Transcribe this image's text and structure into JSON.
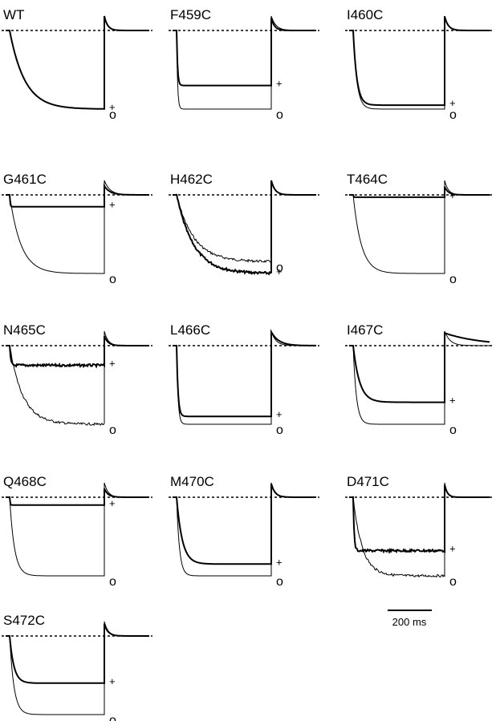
{
  "chart_data": {
    "type": "line",
    "title": "",
    "xlabel": "",
    "ylabel": "",
    "legend": "none; each trace marked at its right end with a symbol",
    "trace_markers": [
      "o",
      "+"
    ],
    "grid": false,
    "reference_line": "dashed zero-current line in every panel",
    "scale_bar": {
      "value": 200,
      "unit": "ms",
      "label": "200 ms"
    },
    "note": "values are current levels relative to the dashed zero line; -1 = deepest steady-state current in the panel; time in ms",
    "panels": [
      {
        "label": "WT",
        "series": [
          {
            "marker": "o",
            "tau_ms": 160,
            "level": -1.0,
            "tail_ms": 35
          },
          {
            "marker": "+",
            "tau_ms": 160,
            "level": -1.0,
            "tail_ms": 35
          }
        ]
      },
      {
        "label": "F459C",
        "series": [
          {
            "marker": "o",
            "tau_ms": 10,
            "level": -1.0,
            "tail_ms": 50
          },
          {
            "marker": "+",
            "tau_ms": 10,
            "level": -0.7,
            "tail_ms": 35
          }
        ]
      },
      {
        "label": "I460C",
        "series": [
          {
            "marker": "o",
            "tau_ms": 40,
            "level": -1.0,
            "tail_ms": 40
          },
          {
            "marker": "+",
            "tau_ms": 40,
            "level": -0.95,
            "tail_ms": 40
          }
        ]
      },
      {
        "label": "G461C",
        "series": [
          {
            "marker": "o",
            "tau_ms": 120,
            "level": -1.0,
            "tail_ms": 60
          },
          {
            "marker": "+",
            "tau_ms": 5,
            "level": -0.15,
            "tail_ms": 60
          }
        ]
      },
      {
        "label": "H462C",
        "series": [
          {
            "marker": "o",
            "tau_ms": 180,
            "level": -0.85,
            "tail_ms": 40
          },
          {
            "marker": "+",
            "tau_ms": 180,
            "level": -1.0,
            "tail_ms": 40
          }
        ]
      },
      {
        "label": "T464C",
        "series": [
          {
            "marker": "o",
            "tau_ms": 90,
            "level": -1.0,
            "tail_ms": 40
          },
          {
            "marker": "+",
            "tau_ms": 5,
            "level": -0.03,
            "tail_ms": 40
          }
        ]
      },
      {
        "label": "N465C",
        "series": [
          {
            "marker": "o",
            "tau_ms": 140,
            "level": -1.0,
            "tail_ms": 40
          },
          {
            "marker": "+",
            "tau_ms": 10,
            "level": -0.25,
            "tail_ms": 40
          }
        ]
      },
      {
        "label": "L466C",
        "series": [
          {
            "marker": "o",
            "tau_ms": 15,
            "level": -1.0,
            "tail_ms": 50
          },
          {
            "marker": "+",
            "tau_ms": 15,
            "level": -0.9,
            "tail_ms": 80
          }
        ]
      },
      {
        "label": "I467C",
        "series": [
          {
            "marker": "o",
            "tau_ms": 35,
            "level": -1.0,
            "tail_ms": 60
          },
          {
            "marker": "+",
            "tau_ms": 70,
            "level": -0.72,
            "tail_ms": 400
          }
        ]
      },
      {
        "label": "Q468C",
        "series": [
          {
            "marker": "o",
            "tau_ms": 50,
            "level": -1.0,
            "tail_ms": 40
          },
          {
            "marker": "+",
            "tau_ms": 5,
            "level": -0.1,
            "tail_ms": 40
          }
        ]
      },
      {
        "label": "M470C",
        "series": [
          {
            "marker": "o",
            "tau_ms": 30,
            "level": -1.0,
            "tail_ms": 40
          },
          {
            "marker": "+",
            "tau_ms": 60,
            "level": -0.85,
            "tail_ms": 40
          }
        ]
      },
      {
        "label": "D471C",
        "series": [
          {
            "marker": "o",
            "tau_ms": 100,
            "level": -1.0,
            "tail_ms": 30
          },
          {
            "marker": "+",
            "tau_ms": 10,
            "level": -0.68,
            "tail_ms": 30
          }
        ]
      },
      {
        "label": "S472C",
        "series": [
          {
            "marker": "o",
            "tau_ms": 45,
            "level": -1.0,
            "tail_ms": 40
          },
          {
            "marker": "+",
            "tau_ms": 45,
            "level": -0.6,
            "tail_ms": 40
          }
        ]
      }
    ]
  }
}
